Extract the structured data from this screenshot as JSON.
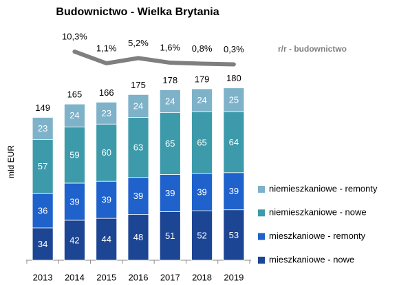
{
  "chart_data": {
    "type": "bar",
    "stacked": true,
    "title": "Budownictwo - Wielka Brytania",
    "y_label": "mld EUR",
    "categories": [
      "2013",
      "2014",
      "2015",
      "2016",
      "2017",
      "2018",
      "2019"
    ],
    "series": [
      {
        "name": "mieszkaniowe - nowe",
        "color": "#1c4594",
        "values": [
          34,
          42,
          44,
          48,
          51,
          52,
          53
        ]
      },
      {
        "name": "mieszkaniowe - remonty",
        "color": "#1f62cc",
        "values": [
          36,
          39,
          39,
          39,
          39,
          39,
          39
        ]
      },
      {
        "name": "niemieszkaniowe - nowe",
        "color": "#3d9aab",
        "values": [
          57,
          59,
          60,
          63,
          65,
          65,
          64
        ]
      },
      {
        "name": "niemieszkaniowe - remonty",
        "color": "#7eb2c9",
        "values": [
          23,
          24,
          23,
          24,
          24,
          24,
          25
        ]
      }
    ],
    "totals": [
      149,
      165,
      166,
      175,
      178,
      179,
      180
    ],
    "ylim": [
      0,
      200
    ],
    "line": {
      "type": "line",
      "name": "r/r - budownictwo",
      "color": "#7f7f7f",
      "axis": "y2",
      "values": [
        null,
        10.3,
        1.1,
        5.2,
        1.6,
        0.8,
        0.3
      ],
      "value_labels": [
        null,
        "10,3%",
        "1,1%",
        "5,2%",
        "1,6%",
        "0,8%",
        "0,3%"
      ]
    },
    "y2lim": [
      0,
      12
    ],
    "legend": "right"
  }
}
